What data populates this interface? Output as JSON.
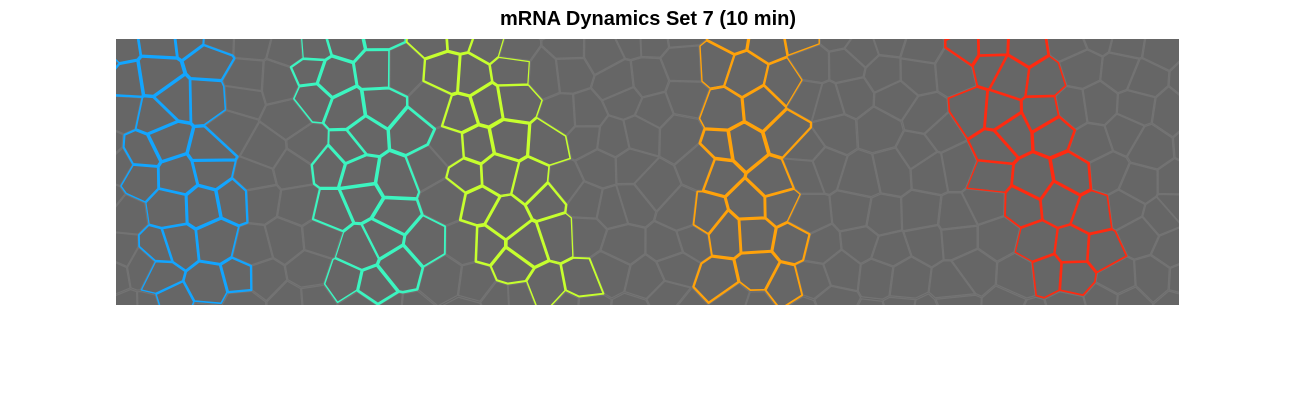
{
  "title": "mRNA Dynamics Set 7 (10 min)",
  "image": {
    "background_color": "#636363",
    "cell_edge_color": "#737373",
    "highlighted_stripes": [
      {
        "color": "#12a5ff"
      },
      {
        "color": "#3cf5c0"
      },
      {
        "color": "#c6ff2e"
      },
      {
        "color": "#ffa20a"
      },
      {
        "color": "#ff2a10"
      }
    ]
  }
}
